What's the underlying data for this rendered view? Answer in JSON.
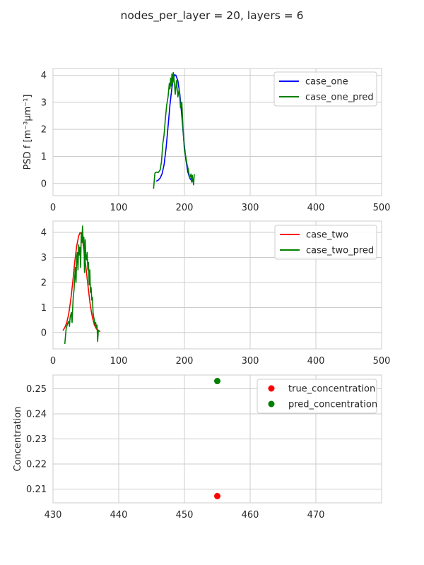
{
  "figure": {
    "title": "nodes_per_layer = 20, layers = 6"
  },
  "colors": {
    "case_one": "#0000ff",
    "case_one_pred": "#008000",
    "case_two": "#ff0000",
    "case_two_pred": "#008000",
    "true_concentration": "#ff0000",
    "pred_concentration": "#008000",
    "grid": "#cccccc",
    "axes_edge": "#cccccc"
  },
  "chart_data": [
    {
      "type": "line",
      "title": "",
      "xlabel": "",
      "ylabel": "PSD f [m⁻³μm⁻¹]",
      "xlim": [
        0,
        500
      ],
      "ylim": [
        -0.45,
        4.25
      ],
      "xticks": [
        0,
        100,
        200,
        300,
        400,
        500
      ],
      "yticks": [
        0,
        1,
        2,
        3,
        4
      ],
      "grid": true,
      "legend_position": "top-right",
      "series": [
        {
          "name": "case_one",
          "color_key": "case_one",
          "x": [
            157,
            160,
            163,
            166,
            169,
            172,
            175,
            178,
            181,
            183,
            185,
            187,
            190,
            193,
            196,
            199,
            202,
            205,
            208,
            211,
            214
          ],
          "y": [
            0.08,
            0.12,
            0.2,
            0.36,
            0.7,
            1.3,
            2.1,
            2.9,
            3.55,
            3.85,
            4.02,
            4.0,
            3.8,
            3.3,
            2.5,
            1.6,
            0.9,
            0.45,
            0.2,
            0.1,
            0.05
          ]
        },
        {
          "name": "case_one_pred",
          "color_key": "case_one_pred",
          "x": [
            153,
            155,
            157,
            160,
            163,
            165,
            167,
            169,
            171,
            173,
            175,
            177,
            178,
            179,
            180,
            181,
            182,
            183,
            184,
            185,
            186,
            188,
            190,
            192,
            194,
            196,
            198,
            200,
            202,
            204,
            206,
            208,
            210,
            211,
            212,
            213,
            214,
            215
          ],
          "y": [
            -0.2,
            0.38,
            0.42,
            0.4,
            0.5,
            0.8,
            1.45,
            1.8,
            2.4,
            2.9,
            3.2,
            3.7,
            3.5,
            3.9,
            3.6,
            4.05,
            3.7,
            4.1,
            3.9,
            3.6,
            3.3,
            3.8,
            3.2,
            3.5,
            2.8,
            3.0,
            2.0,
            1.2,
            1.0,
            0.7,
            0.5,
            0.2,
            0.35,
            0.05,
            0.3,
            0.1,
            -0.05,
            0.35
          ]
        }
      ]
    },
    {
      "type": "line",
      "title": "",
      "xlabel": "",
      "ylabel": "",
      "xlim": [
        0,
        500
      ],
      "ylim": [
        -0.65,
        4.45
      ],
      "xticks": [
        0,
        100,
        200,
        300,
        400,
        500
      ],
      "yticks": [
        0,
        1,
        2,
        3,
        4
      ],
      "grid": true,
      "legend_position": "top-right",
      "series": [
        {
          "name": "case_two",
          "color_key": "case_two",
          "x": [
            15,
            18,
            21,
            24,
            27,
            30,
            33,
            36,
            39,
            41,
            43,
            45,
            48,
            51,
            54,
            57,
            60,
            63,
            66,
            69,
            72
          ],
          "y": [
            0.08,
            0.2,
            0.4,
            0.75,
            1.3,
            2.0,
            2.8,
            3.45,
            3.85,
            3.98,
            3.95,
            3.7,
            3.1,
            2.4,
            1.7,
            1.05,
            0.6,
            0.3,
            0.15,
            0.08,
            0.04
          ]
        },
        {
          "name": "case_two_pred",
          "color_key": "case_two_pred",
          "x": [
            18,
            20,
            22,
            24,
            25,
            26,
            28,
            29,
            30,
            31,
            32,
            33,
            34,
            35,
            36,
            37,
            38,
            39,
            40,
            41,
            42,
            43,
            44,
            45,
            46,
            47,
            48,
            49,
            50,
            51,
            52,
            53,
            54,
            55,
            56,
            57,
            58,
            59,
            60,
            61,
            62,
            63,
            64,
            65,
            66,
            67,
            68,
            69,
            70
          ],
          "y": [
            -0.45,
            0.15,
            0.35,
            0.45,
            0.25,
            0.6,
            0.8,
            0.4,
            1.0,
            1.5,
            1.7,
            2.2,
            2.6,
            2.0,
            3.0,
            3.2,
            2.5,
            3.5,
            3.1,
            3.4,
            2.6,
            4.0,
            3.6,
            4.25,
            3.5,
            3.8,
            2.4,
            3.7,
            3.0,
            2.9,
            3.2,
            2.5,
            2.8,
            1.9,
            2.5,
            1.6,
            1.8,
            1.3,
            1.4,
            0.8,
            0.6,
            0.5,
            0.3,
            0.4,
            0.2,
            0.3,
            -0.35,
            0.1,
            0.05
          ]
        }
      ]
    },
    {
      "type": "scatter",
      "title": "",
      "xlabel": "",
      "ylabel": "Concentration",
      "xlim": [
        430,
        480
      ],
      "ylim": [
        0.2045,
        0.2555
      ],
      "xticks": [
        430,
        440,
        450,
        460,
        470
      ],
      "yticks": [
        0.21,
        0.22,
        0.23,
        0.24,
        0.25
      ],
      "grid": true,
      "legend_position": "top-right",
      "series": [
        {
          "name": "true_concentration",
          "color_key": "true_concentration",
          "x": [
            455
          ],
          "y": [
            0.2072
          ]
        },
        {
          "name": "pred_concentration",
          "color_key": "pred_concentration",
          "x": [
            455
          ],
          "y": [
            0.2531
          ]
        }
      ]
    }
  ]
}
